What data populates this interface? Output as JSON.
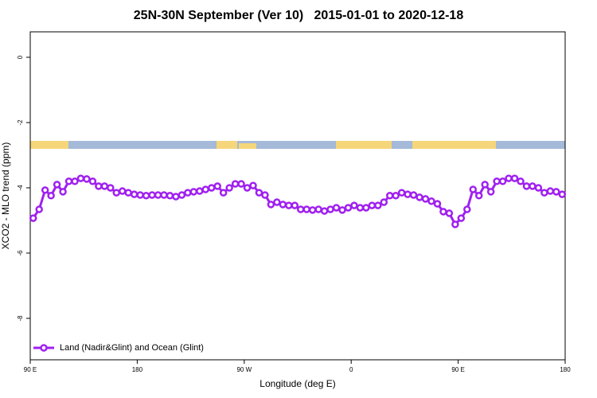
{
  "chart_data": {
    "type": "line",
    "title": "25N-30N September (Ver 10)   2015-01-01 to 2020-12-18",
    "xlabel": "Longitude (deg E)",
    "ylabel": "XCO2 - MLO trend (ppm)",
    "xlim": [
      90,
      540
    ],
    "ylim": [
      -9.27,
      0.78
    ],
    "xticks": [
      {
        "value": 90,
        "label": "90 E"
      },
      180,
      {
        "value": 270,
        "label": "90 W"
      },
      {
        "value": 360,
        "label": "0"
      },
      {
        "value": 450,
        "label": "90 E"
      },
      {
        "value": 540,
        "label": "180"
      }
    ],
    "yticks": [
      0,
      -2,
      -4,
      -6,
      -8
    ],
    "legend_position": "bottom-left",
    "x": [
      92.5,
      97.5,
      102.5,
      107.5,
      112.5,
      117.5,
      122.5,
      127.5,
      132.5,
      137.5,
      142.5,
      147.5,
      152.5,
      157.5,
      162.5,
      167.5,
      172.5,
      177.5,
      182.5,
      187.5,
      192.5,
      197.5,
      202.5,
      207.5,
      212.5,
      217.5,
      222.5,
      227.5,
      232.5,
      237.5,
      242.5,
      247.5,
      252.5,
      257.5,
      262.5,
      267.5,
      272.5,
      277.5,
      282.5,
      287.5,
      292.5,
      297.5,
      302.5,
      307.5,
      312.5,
      317.5,
      322.5,
      327.5,
      332.5,
      337.5,
      342.5,
      347.5,
      352.5,
      357.5,
      362.5,
      367.5,
      372.5,
      377.5,
      382.5,
      387.5,
      392.5,
      397.5,
      402.5,
      407.5,
      412.5,
      417.5,
      422.5,
      427.5,
      432.5,
      437.5,
      442.5,
      447.5,
      452.5,
      457.5,
      462.5,
      467.5,
      472.5,
      477.5,
      482.5,
      487.5,
      492.5,
      497.5,
      502.5,
      507.5,
      512.5,
      517.5,
      522.5,
      527.5,
      532.5,
      537.5
    ],
    "series": [
      {
        "name": "Land (Nadir&Glint) and Ocean (Glint)",
        "color": "#a020f0",
        "values": [
          -4.93,
          -4.66,
          -4.07,
          -4.24,
          -3.9,
          -4.12,
          -3.8,
          -3.8,
          -3.71,
          -3.73,
          -3.8,
          -3.95,
          -3.95,
          -4.0,
          -4.15,
          -4.1,
          -4.15,
          -4.2,
          -4.22,
          -4.24,
          -4.22,
          -4.22,
          -4.22,
          -4.24,
          -4.27,
          -4.22,
          -4.15,
          -4.12,
          -4.1,
          -4.05,
          -4.0,
          -3.95,
          -4.15,
          -4.0,
          -3.88,
          -3.88,
          -4.0,
          -3.93,
          -4.15,
          -4.22,
          -4.51,
          -4.44,
          -4.51,
          -4.54,
          -4.54,
          -4.66,
          -4.66,
          -4.68,
          -4.66,
          -4.71,
          -4.66,
          -4.61,
          -4.68,
          -4.61,
          -4.54,
          -4.61,
          -4.61,
          -4.54,
          -4.54,
          -4.44,
          -4.24,
          -4.24,
          -4.15,
          -4.2,
          -4.22,
          -4.29,
          -4.34,
          -4.41,
          -4.49,
          -4.73,
          -4.78,
          -5.12,
          -4.93,
          -4.66,
          -4.05,
          -4.24,
          -3.9,
          -4.12,
          -3.8,
          -3.8,
          -3.71,
          -3.71,
          -3.8,
          -3.95,
          -3.95,
          -4.0,
          -4.15,
          -4.1,
          -4.12,
          -4.2
        ]
      }
    ]
  }
}
